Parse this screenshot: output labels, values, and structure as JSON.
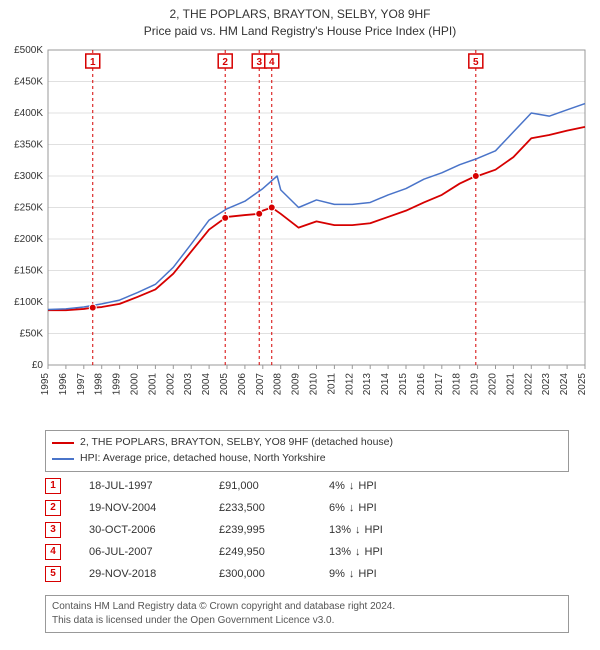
{
  "title_line1": "2, THE POPLARS, BRAYTON, SELBY, YO8 9HF",
  "title_line2": "Price paid vs. HM Land Registry's House Price Index (HPI)",
  "chart": {
    "type": "line",
    "background_color": "#ffffff",
    "plot_border_color": "#999999",
    "grid_color": "#e0e0e0",
    "marker_dash_color": "#d60000",
    "x_years": [
      "1995",
      "1996",
      "1997",
      "1998",
      "1999",
      "2000",
      "2001",
      "2002",
      "2003",
      "2004",
      "2005",
      "2006",
      "2007",
      "2008",
      "2009",
      "2010",
      "2011",
      "2012",
      "2013",
      "2014",
      "2015",
      "2016",
      "2017",
      "2018",
      "2019",
      "2020",
      "2021",
      "2022",
      "2023",
      "2024",
      "2025"
    ],
    "y_ticks": [
      0,
      50000,
      100000,
      150000,
      200000,
      250000,
      300000,
      350000,
      400000,
      450000,
      500000
    ],
    "y_tick_labels": [
      "£0",
      "£50K",
      "£100K",
      "£150K",
      "£200K",
      "£250K",
      "£300K",
      "£350K",
      "£400K",
      "£450K",
      "£500K"
    ],
    "ylim": [
      0,
      500000
    ],
    "xlim": [
      1995,
      2025
    ],
    "axis_fontsize": 10,
    "series": [
      {
        "name": "property",
        "label": "2, THE POPLARS, BRAYTON, SELBY, YO8 9HF (detached house)",
        "color": "#d60000",
        "line_width": 1.8,
        "points": [
          [
            1995,
            87000
          ],
          [
            1996,
            87000
          ],
          [
            1997,
            89000
          ],
          [
            1997.5,
            91000
          ],
          [
            1998,
            92000
          ],
          [
            1999,
            97000
          ],
          [
            2000,
            108000
          ],
          [
            2001,
            120000
          ],
          [
            2002,
            145000
          ],
          [
            2003,
            180000
          ],
          [
            2004,
            215000
          ],
          [
            2004.9,
            233500
          ],
          [
            2005,
            235000
          ],
          [
            2006,
            238000
          ],
          [
            2006.8,
            239995
          ],
          [
            2007,
            245000
          ],
          [
            2007.5,
            249950
          ],
          [
            2008,
            240000
          ],
          [
            2009,
            218000
          ],
          [
            2010,
            228000
          ],
          [
            2011,
            222000
          ],
          [
            2012,
            222000
          ],
          [
            2013,
            225000
          ],
          [
            2014,
            235000
          ],
          [
            2015,
            245000
          ],
          [
            2016,
            258000
          ],
          [
            2017,
            270000
          ],
          [
            2018,
            288000
          ],
          [
            2018.9,
            300000
          ],
          [
            2019,
            300000
          ],
          [
            2020,
            310000
          ],
          [
            2021,
            330000
          ],
          [
            2022,
            360000
          ],
          [
            2023,
            365000
          ],
          [
            2024,
            372000
          ],
          [
            2025,
            378000
          ]
        ]
      },
      {
        "name": "hpi",
        "label": "HPI: Average price, detached house, North Yorkshire",
        "color": "#4a74c9",
        "line_width": 1.5,
        "points": [
          [
            1995,
            88000
          ],
          [
            1996,
            89000
          ],
          [
            1997,
            92000
          ],
          [
            1998,
            97000
          ],
          [
            1999,
            103000
          ],
          [
            2000,
            115000
          ],
          [
            2001,
            128000
          ],
          [
            2002,
            155000
          ],
          [
            2003,
            192000
          ],
          [
            2004,
            230000
          ],
          [
            2005,
            248000
          ],
          [
            2006,
            260000
          ],
          [
            2007,
            280000
          ],
          [
            2007.8,
            300000
          ],
          [
            2008,
            278000
          ],
          [
            2009,
            250000
          ],
          [
            2010,
            262000
          ],
          [
            2011,
            255000
          ],
          [
            2012,
            255000
          ],
          [
            2013,
            258000
          ],
          [
            2014,
            270000
          ],
          [
            2015,
            280000
          ],
          [
            2016,
            295000
          ],
          [
            2017,
            305000
          ],
          [
            2018,
            318000
          ],
          [
            2019,
            328000
          ],
          [
            2020,
            340000
          ],
          [
            2021,
            370000
          ],
          [
            2022,
            400000
          ],
          [
            2023,
            395000
          ],
          [
            2024,
            405000
          ],
          [
            2025,
            415000
          ]
        ]
      }
    ],
    "sale_markers": [
      {
        "n": "1",
        "year": 1997.5,
        "price": 91000
      },
      {
        "n": "2",
        "year": 2004.9,
        "price": 233500
      },
      {
        "n": "3",
        "year": 2006.8,
        "price": 239995
      },
      {
        "n": "4",
        "year": 2007.5,
        "price": 249950
      },
      {
        "n": "5",
        "year": 2018.9,
        "price": 300000
      }
    ]
  },
  "legend": {
    "property_label": "2, THE POPLARS, BRAYTON, SELBY, YO8 9HF (detached house)",
    "hpi_label": "HPI: Average price, detached house, North Yorkshire",
    "property_color": "#d60000",
    "hpi_color": "#4a74c9"
  },
  "sales": [
    {
      "n": "1",
      "date": "18-JUL-1997",
      "price": "£91,000",
      "pct": "4%",
      "arrow": "↓",
      "suffix": "HPI"
    },
    {
      "n": "2",
      "date": "19-NOV-2004",
      "price": "£233,500",
      "pct": "6%",
      "arrow": "↓",
      "suffix": "HPI"
    },
    {
      "n": "3",
      "date": "30-OCT-2006",
      "price": "£239,995",
      "pct": "13%",
      "arrow": "↓",
      "suffix": "HPI"
    },
    {
      "n": "4",
      "date": "06-JUL-2007",
      "price": "£249,950",
      "pct": "13%",
      "arrow": "↓",
      "suffix": "HPI"
    },
    {
      "n": "5",
      "date": "29-NOV-2018",
      "price": "£300,000",
      "pct": "9%",
      "arrow": "↓",
      "suffix": "HPI"
    }
  ],
  "footer_line1": "Contains HM Land Registry data © Crown copyright and database right 2024.",
  "footer_line2": "This data is licensed under the Open Government Licence v3.0."
}
